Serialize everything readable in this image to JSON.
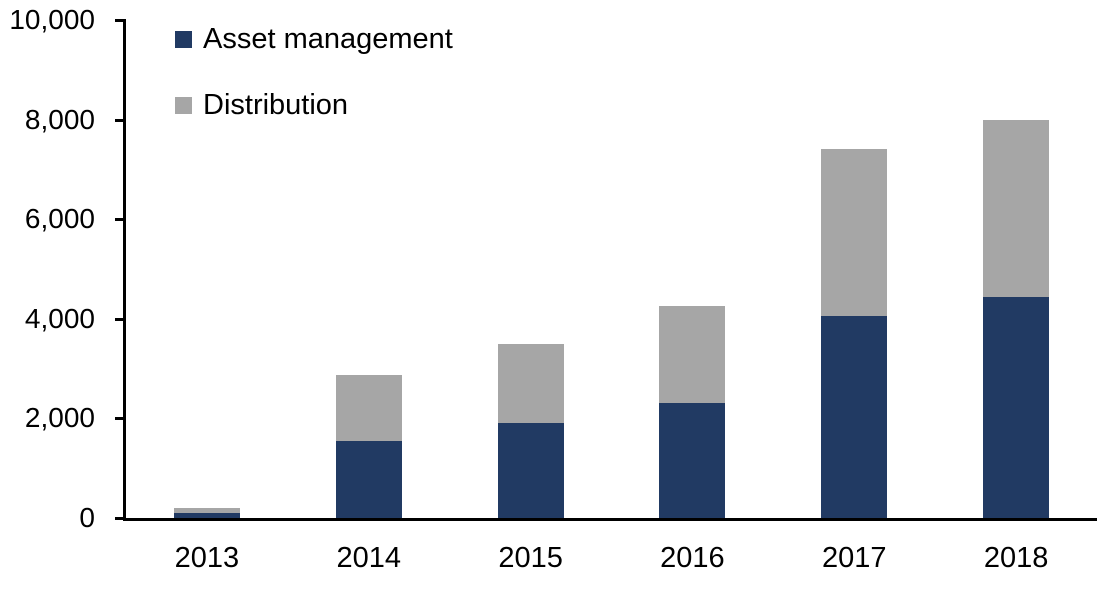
{
  "chart_data": {
    "type": "bar",
    "stacked": true,
    "title": "",
    "xlabel": "",
    "ylabel": "",
    "categories": [
      "2013",
      "2014",
      "2015",
      "2016",
      "2017",
      "2018"
    ],
    "series": [
      {
        "name": "Asset management",
        "color": "#213A63",
        "values": [
          100,
          1550,
          1900,
          2300,
          4050,
          4430
        ]
      },
      {
        "name": "Distribution",
        "color": "#A6A6A6",
        "values": [
          100,
          1330,
          1600,
          1950,
          3350,
          3570
        ]
      }
    ],
    "totals": [
      200,
      2880,
      3500,
      4250,
      7400,
      8000
    ],
    "ylim": [
      0,
      10000
    ],
    "yticks": [
      0,
      2000,
      4000,
      6000,
      8000,
      10000
    ],
    "ytick_labels": [
      "0",
      "2,000",
      "4,000",
      "6,000",
      "8,000",
      "10,000"
    ],
    "grid": false,
    "legend_position": "top-left-inside",
    "axis_color": "#000000",
    "text_color": "#000000",
    "background_color": "#FFFFFF"
  }
}
